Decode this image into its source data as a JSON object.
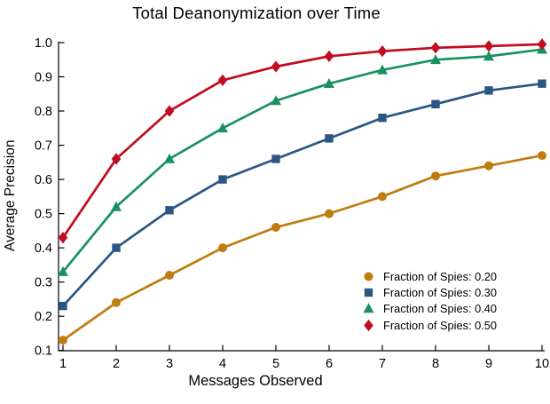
{
  "chart_data": {
    "type": "line",
    "title": "Total Deanonymization over Time",
    "xlabel": "Messages Observed",
    "ylabel": "Average Precision",
    "x": [
      1,
      2,
      3,
      4,
      5,
      6,
      7,
      8,
      9,
      10
    ],
    "xticks": [
      1,
      2,
      3,
      4,
      5,
      6,
      7,
      8,
      9,
      10
    ],
    "yticks": [
      0.1,
      0.2,
      0.3,
      0.4,
      0.5,
      0.6,
      0.7,
      0.8,
      0.9,
      1.0
    ],
    "xlim": [
      1,
      10
    ],
    "ylim": [
      0.1,
      1.0
    ],
    "grid": false,
    "legend_position": "lower-right-inside",
    "axis_color": "#000000",
    "background_color": "#ffffff",
    "series": [
      {
        "name": "Fraction of Spies: 0.20",
        "marker": "circle",
        "color": "#BF7D0F",
        "values": [
          0.13,
          0.24,
          0.32,
          0.4,
          0.46,
          0.5,
          0.55,
          0.61,
          0.64,
          0.67
        ]
      },
      {
        "name": "Fraction of Spies: 0.30",
        "marker": "square",
        "color": "#2C5784",
        "values": [
          0.23,
          0.4,
          0.51,
          0.6,
          0.66,
          0.72,
          0.78,
          0.82,
          0.86,
          0.88
        ]
      },
      {
        "name": "Fraction of Spies: 0.40",
        "marker": "triangle",
        "color": "#1A9161",
        "values": [
          0.33,
          0.52,
          0.66,
          0.75,
          0.83,
          0.88,
          0.92,
          0.95,
          0.96,
          0.98
        ]
      },
      {
        "name": "Fraction of Spies: 0.50",
        "marker": "diamond",
        "color": "#C00D20",
        "values": [
          0.43,
          0.66,
          0.8,
          0.89,
          0.93,
          0.96,
          0.975,
          0.985,
          0.99,
          0.995
        ]
      }
    ]
  }
}
